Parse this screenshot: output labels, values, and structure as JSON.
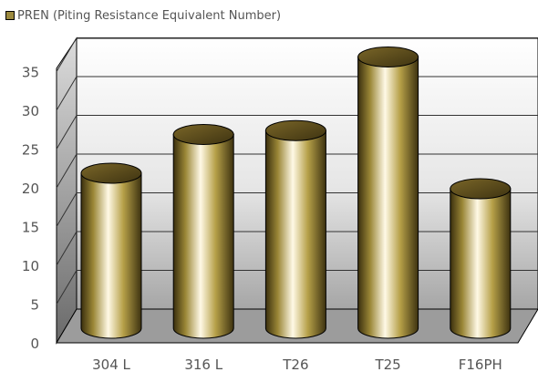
{
  "legend": {
    "label": "PREN (Piting Resistance Equivalent Number)"
  },
  "chart_data": {
    "type": "bar",
    "categories": [
      "304 L",
      "316 L",
      "T26",
      "T25",
      "F16PH"
    ],
    "series": [
      {
        "name": "PREN (Piting Resistance Equivalent Number)",
        "values": [
          20,
          25,
          25.5,
          35,
          18
        ]
      }
    ],
    "y_ticks": [
      "0",
      "5",
      "10",
      "15",
      "20",
      "25",
      "30",
      "35"
    ],
    "ylim": [
      0,
      40
    ],
    "grid": true,
    "legend_position": "top-left",
    "bar_shape": "cylinder",
    "colors": {
      "bar_dark": "#3a2f0e",
      "bar_mid": "#b19b44",
      "bar_light": "#fff9e6",
      "floor": "#9c9c9c",
      "wall": "#7a7a7a"
    }
  }
}
